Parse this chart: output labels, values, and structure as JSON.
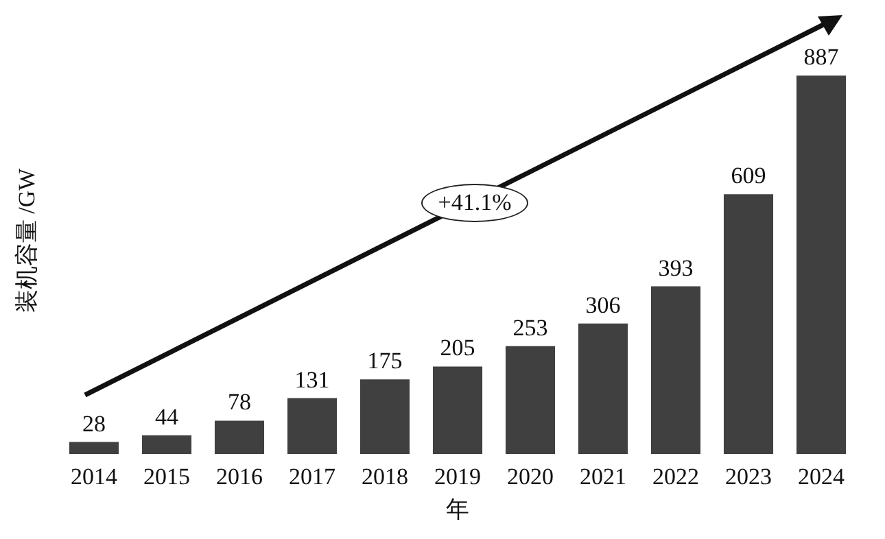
{
  "chart_data": {
    "type": "bar",
    "ylabel": "装机容量 /GW",
    "xlabel": "年",
    "categories": [
      "2014",
      "2015",
      "2016",
      "2017",
      "2018",
      "2019",
      "2020",
      "2021",
      "2022",
      "2023",
      "2024"
    ],
    "values": [
      28,
      44,
      78,
      131,
      175,
      205,
      253,
      306,
      393,
      609,
      887
    ],
    "color": "#404040",
    "data_labels": true,
    "annotations": [
      "+41.1%"
    ]
  }
}
